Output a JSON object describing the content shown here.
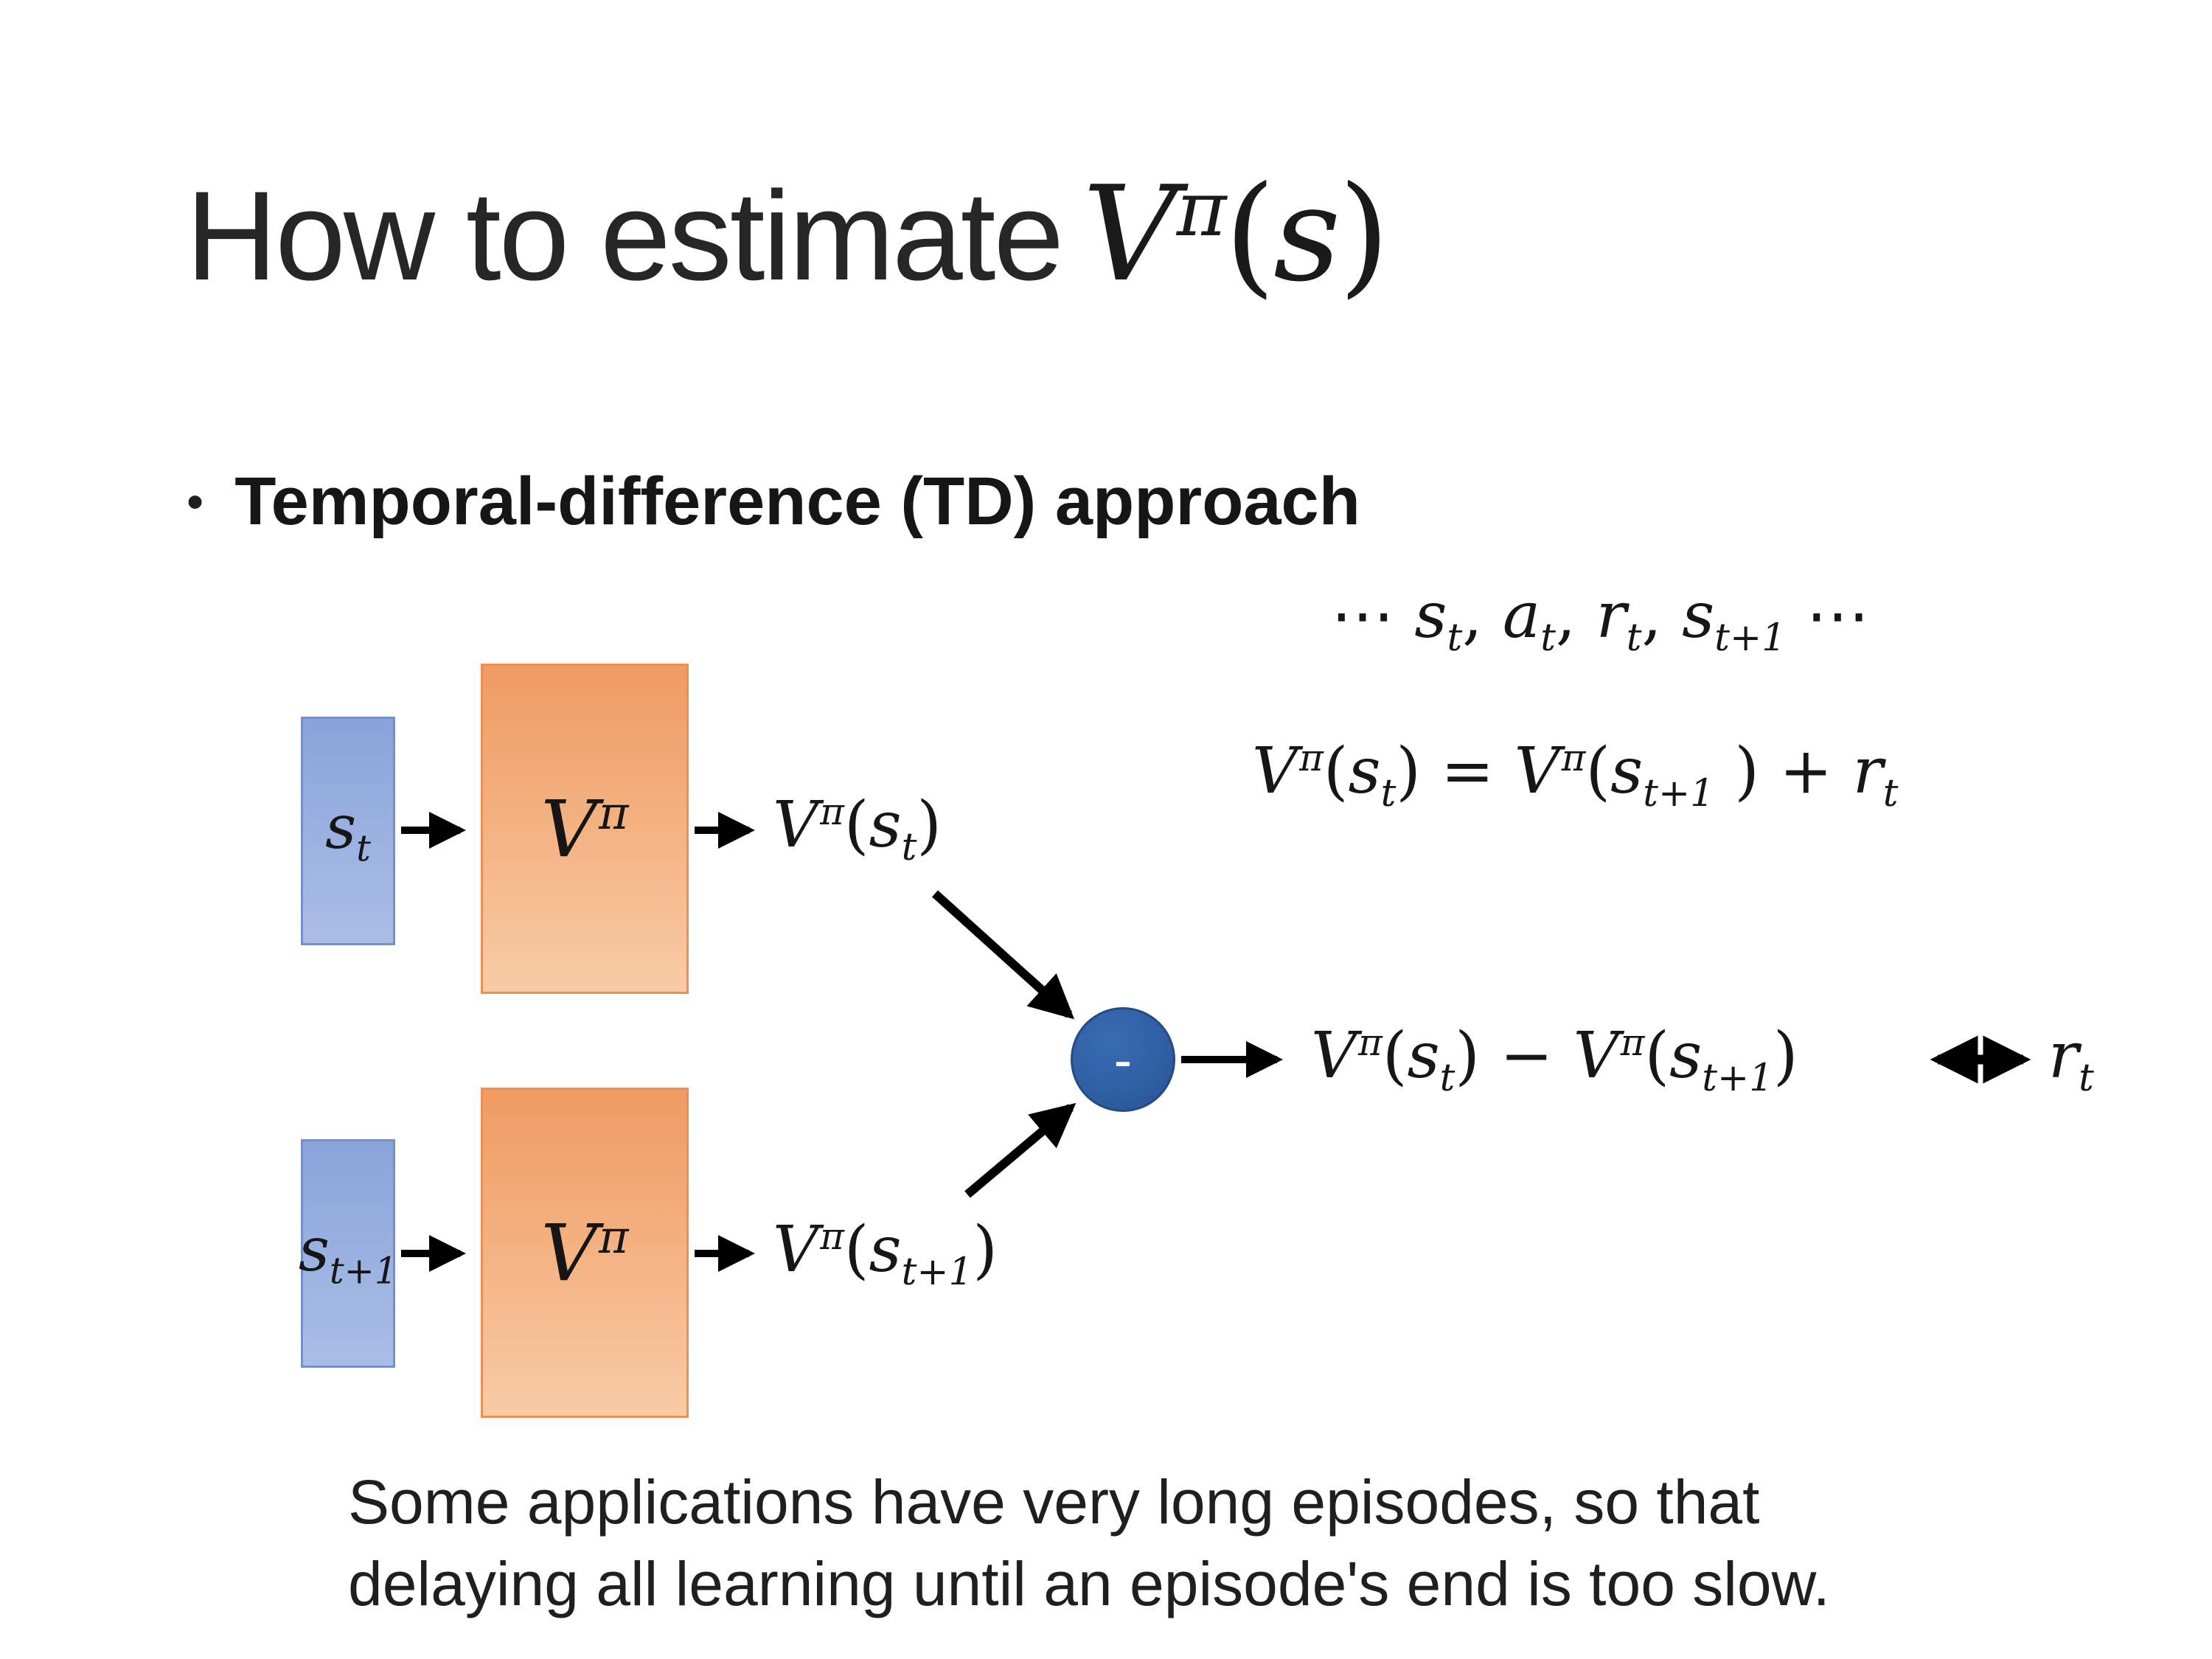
{
  "title": {
    "plain": "How to estimate",
    "formula": [
      {
        "t": "V",
        "k": "i"
      },
      {
        "t": "π",
        "k": "sup"
      },
      {
        "t": "(",
        "k": "up"
      },
      {
        "t": "s",
        "k": "i"
      },
      {
        "t": ")",
        "k": "up"
      }
    ]
  },
  "bullet": {
    "marker": "•",
    "text": "Temporal-difference (TD) approach"
  },
  "formulas": {
    "trajectory": [
      {
        "t": "⋯ ",
        "k": "up"
      },
      {
        "t": "s",
        "k": "i"
      },
      {
        "t": "t",
        "k": "sub"
      },
      {
        "t": ", ",
        "k": "up"
      },
      {
        "t": "a",
        "k": "i"
      },
      {
        "t": "t",
        "k": "sub"
      },
      {
        "t": ", ",
        "k": "up"
      },
      {
        "t": "r",
        "k": "i"
      },
      {
        "t": "t",
        "k": "sub"
      },
      {
        "t": ", ",
        "k": "up"
      },
      {
        "t": "s",
        "k": "i"
      },
      {
        "t": "t+1",
        "k": "sub"
      },
      {
        "t": " ⋯",
        "k": "up"
      }
    ],
    "td_equation": [
      {
        "t": "V",
        "k": "i"
      },
      {
        "t": "π",
        "k": "sup"
      },
      {
        "t": "(",
        "k": "up"
      },
      {
        "t": "s",
        "k": "i"
      },
      {
        "t": "t",
        "k": "sub"
      },
      {
        "t": ") = ",
        "k": "up"
      },
      {
        "t": "V",
        "k": "i"
      },
      {
        "t": "π",
        "k": "sup"
      },
      {
        "t": "(",
        "k": "up"
      },
      {
        "t": "s",
        "k": "i"
      },
      {
        "t": "t+1",
        "k": "sub"
      },
      {
        "t": " ) + ",
        "k": "up"
      },
      {
        "t": "r",
        "k": "i"
      },
      {
        "t": "t",
        "k": "sub"
      }
    ],
    "v_pi": [
      {
        "t": "V",
        "k": "i"
      },
      {
        "t": "π",
        "k": "sup"
      }
    ],
    "s_t": [
      {
        "t": "s",
        "k": "i"
      },
      {
        "t": "t",
        "k": "sub"
      }
    ],
    "s_t1": [
      {
        "t": "s",
        "k": "i"
      },
      {
        "t": "t+1",
        "k": "sub"
      }
    ],
    "v_s_t": [
      {
        "t": "V",
        "k": "i"
      },
      {
        "t": "π",
        "k": "sup"
      },
      {
        "t": "(",
        "k": "up"
      },
      {
        "t": "s",
        "k": "i"
      },
      {
        "t": "t",
        "k": "sub"
      },
      {
        "t": ")",
        "k": "up"
      }
    ],
    "v_s_t1": [
      {
        "t": "V",
        "k": "i"
      },
      {
        "t": "π",
        "k": "sup"
      },
      {
        "t": "(",
        "k": "up"
      },
      {
        "t": "s",
        "k": "i"
      },
      {
        "t": "t+1",
        "k": "sub"
      },
      {
        "t": ")",
        "k": "up"
      }
    ],
    "result": [
      {
        "t": "V",
        "k": "i"
      },
      {
        "t": "π",
        "k": "sup"
      },
      {
        "t": "(",
        "k": "up"
      },
      {
        "t": "s",
        "k": "i"
      },
      {
        "t": "t",
        "k": "sub"
      },
      {
        "t": ") − ",
        "k": "up"
      },
      {
        "t": "V",
        "k": "i"
      },
      {
        "t": "π",
        "k": "sup"
      },
      {
        "t": "(",
        "k": "up"
      },
      {
        "t": "s",
        "k": "i"
      },
      {
        "t": "t+1",
        "k": "sub"
      },
      {
        "t": ")",
        "k": "up"
      }
    ],
    "r_t": [
      {
        "t": "r",
        "k": "i"
      },
      {
        "t": "t",
        "k": "sub"
      }
    ]
  },
  "diagram": {
    "minus": "-"
  },
  "note": "Some applications have very long episodes, so that\ndelaying all learning until an episode's end is too slow.",
  "colors": {
    "state_box_fill": "#8aa3d9",
    "state_box_border": "#7490cc",
    "value_box_fill": "#f09b62",
    "value_box_border": "#ec9055",
    "difference_node_fill": "#2e5fa3",
    "arrow": "#000000",
    "text": "#1f1f1f"
  }
}
